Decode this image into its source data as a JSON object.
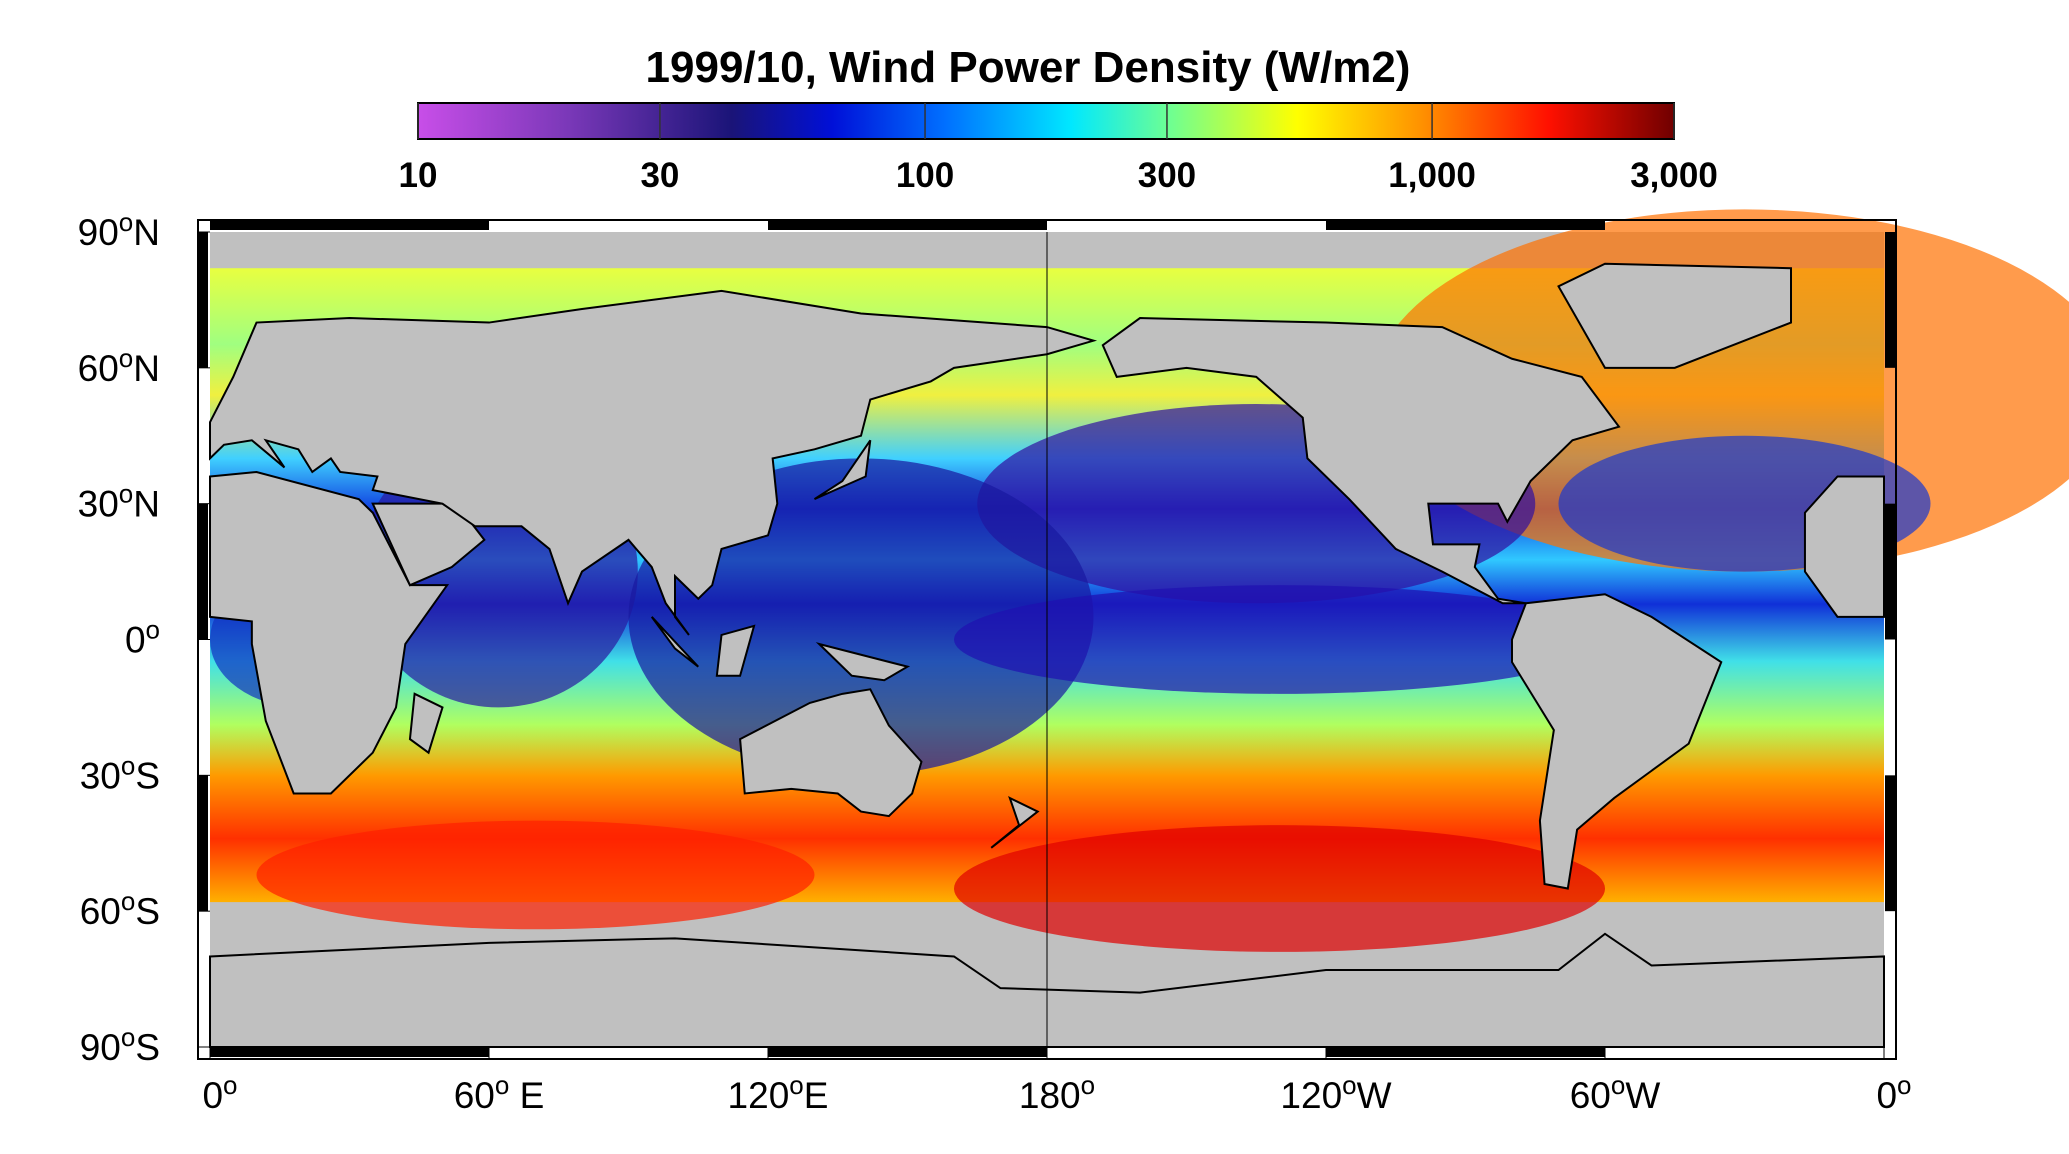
{
  "title": "1999/10, Wind Power Density (W/m2)",
  "colorbar": {
    "scale": "log",
    "lim": [
      10,
      3000
    ],
    "ticks": [
      10,
      30,
      100,
      300,
      {
        "value": 1000,
        "label": "1,000"
      },
      {
        "value": 3000,
        "label": "3,000"
      }
    ]
  },
  "map": {
    "degree_mark": "o",
    "lat_ticks": [
      {
        "value": 90,
        "label": "90",
        "suffix": "N"
      },
      {
        "value": 60,
        "label": "60",
        "suffix": "N"
      },
      {
        "value": 30,
        "label": "30",
        "suffix": "N"
      },
      {
        "value": 0,
        "label": "0"
      },
      {
        "value": -30,
        "label": "30",
        "suffix": "S"
      },
      {
        "value": -60,
        "label": "60",
        "suffix": "S"
      },
      {
        "value": -90,
        "label": "90",
        "suffix": "S"
      }
    ],
    "lon_ticks": [
      {
        "value": 0,
        "label": "0"
      },
      {
        "value": 60,
        "label": "60",
        "suffix": " E"
      },
      {
        "value": 120,
        "label": "120",
        "suffix": "E"
      },
      {
        "value": 180,
        "label": "180"
      },
      {
        "value": 240,
        "label": "120",
        "suffix": "W"
      },
      {
        "value": 300,
        "label": "60",
        "suffix": "W"
      },
      {
        "value": 360,
        "label": "0"
      }
    ]
  }
}
